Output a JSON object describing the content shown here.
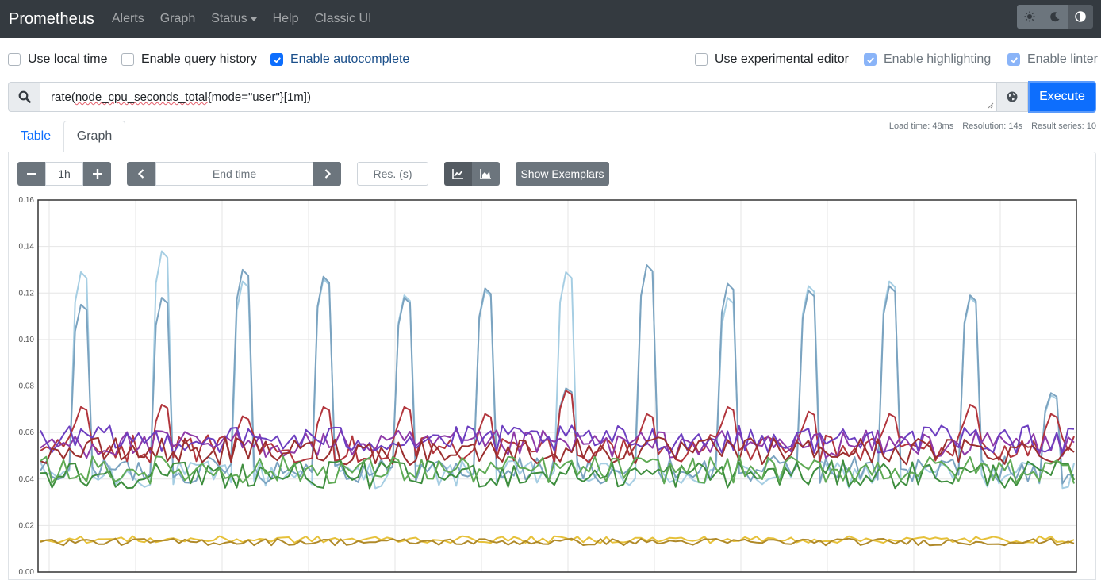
{
  "navbar": {
    "brand": "Prometheus",
    "links": [
      "Alerts",
      "Graph",
      "Status",
      "Help",
      "Classic UI"
    ],
    "theme_icons": [
      "sun-icon",
      "moon-icon",
      "contrast-icon"
    ]
  },
  "options": {
    "local_time": {
      "label": "Use local time",
      "checked": false
    },
    "query_history": {
      "label": "Enable query history",
      "checked": false
    },
    "autocomplete": {
      "label": "Enable autocomplete",
      "checked": true
    },
    "experimental_editor": {
      "label": "Use experimental editor",
      "checked": false
    },
    "highlighting": {
      "label": "Enable highlighting",
      "checked": true
    },
    "linter": {
      "label": "Enable linter",
      "checked": true
    }
  },
  "query": {
    "prefix": "rate(",
    "metric": "node_cpu_seconds_total",
    "suffix": "{mode=\"user\"}[1m])",
    "execute_label": "Execute"
  },
  "stats": {
    "load_time": "Load time: 48ms",
    "resolution": "Resolution: 14s",
    "result_series": "Result series: 10"
  },
  "tabs": {
    "table": "Table",
    "graph": "Graph"
  },
  "graph_controls": {
    "range": "1h",
    "end_time_placeholder": "End time",
    "res_placeholder": "Res. (s)",
    "show_exemplars": "Show Exemplars"
  },
  "chart_data": {
    "type": "line",
    "y_ticks": [
      "0.16",
      "0.14",
      "0.12",
      "0.10",
      "0.08",
      "0.06",
      "0.04",
      "0.02",
      "0.00"
    ],
    "ylim": [
      0,
      0.16
    ],
    "grid": true,
    "points_per_series": 180,
    "spike_positions": [
      6,
      20,
      34,
      48,
      62,
      76,
      90,
      104,
      118,
      132,
      146,
      160,
      174
    ],
    "series": [
      {
        "color": "#a6cee3",
        "base": 0.042,
        "spike": [
          0.129,
          0.138,
          0.125,
          0.126,
          0.119,
          0.121,
          0.129,
          0.132,
          0.118,
          0.123,
          0.125,
          0.118,
          0.076
        ]
      },
      {
        "color": "#7ba3c0",
        "base": 0.044,
        "spike": [
          0.115,
          0.118,
          0.13,
          0.127,
          0.118,
          0.122,
          0.079,
          0.132,
          0.124,
          0.121,
          0.123,
          0.119,
          0.077
        ]
      },
      {
        "color": "#b2363d",
        "base": 0.053,
        "spike": [
          0.071,
          0.072,
          0.067,
          0.071,
          0.071,
          0.068,
          0.078,
          0.068,
          0.071,
          0.069,
          0.068,
          0.072,
          0.068
        ]
      },
      {
        "color": "#8e3aa8",
        "base": 0.055,
        "spike": []
      },
      {
        "color": "#6d3fc0",
        "base": 0.057,
        "spike": []
      },
      {
        "color": "#9b2f2f",
        "base": 0.052,
        "spike": []
      },
      {
        "color": "#3e8e3e",
        "base": 0.042,
        "spike": []
      },
      {
        "color": "#5faa55",
        "base": 0.044,
        "spike": []
      },
      {
        "color": "#e6c13a",
        "base": 0.014,
        "spike": []
      },
      {
        "color": "#b08a2a",
        "base": 0.013,
        "spike": []
      }
    ]
  }
}
